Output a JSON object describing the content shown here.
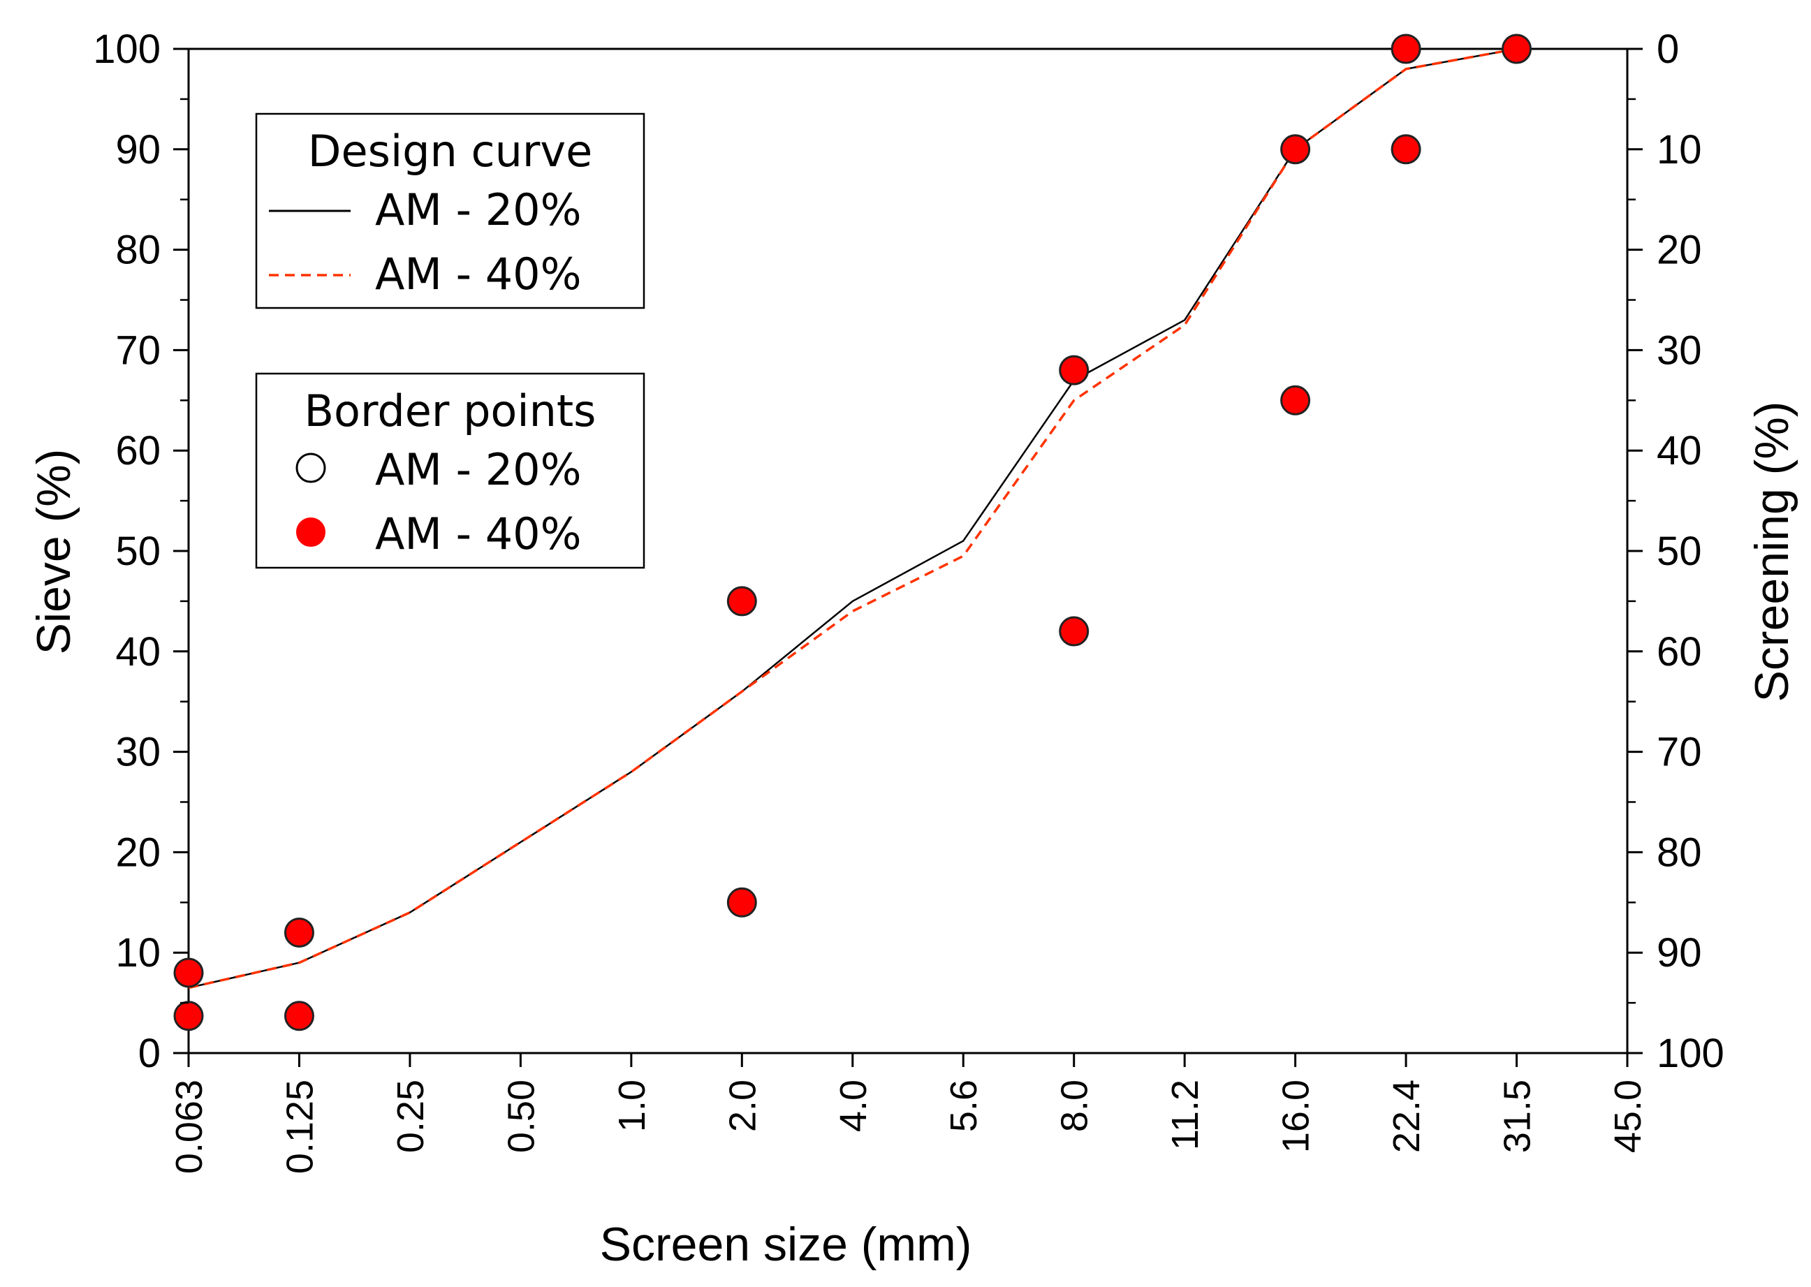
{
  "chart_data": {
    "type": "line",
    "x_scale": "log",
    "xlabel": "Screen size  (mm)",
    "ylabel": "Sieve (%)",
    "y2label": "Screening (%)",
    "ylim": [
      0,
      100
    ],
    "y2lim": [
      100,
      0
    ],
    "x_ticks": [
      {
        "value": 0.063,
        "label": "0.063"
      },
      {
        "value": 0.125,
        "label": "0.125"
      },
      {
        "value": 0.25,
        "label": "0.25"
      },
      {
        "value": 0.5,
        "label": "0.50"
      },
      {
        "value": 1.0,
        "label": "1.0"
      },
      {
        "value": 2.0,
        "label": "2.0"
      },
      {
        "value": 4.0,
        "label": "4.0"
      },
      {
        "value": 5.6,
        "label": "5.6"
      },
      {
        "value": 8.0,
        "label": "8.0"
      },
      {
        "value": 11.2,
        "label": "11.2"
      },
      {
        "value": 16.0,
        "label": "16.0"
      },
      {
        "value": 22.4,
        "label": "22.4"
      },
      {
        "value": 31.5,
        "label": "31.5"
      },
      {
        "value": 45.0,
        "label": "45.0"
      }
    ],
    "y_ticks": [
      "0",
      "10",
      "20",
      "30",
      "40",
      "50",
      "60",
      "70",
      "80",
      "90",
      "100"
    ],
    "y2_ticks": [
      "100",
      "90",
      "80",
      "70",
      "60",
      "50",
      "40",
      "30",
      "20",
      "10",
      "0"
    ],
    "legends": [
      {
        "title": "Design curve",
        "position": "upper-left",
        "entries": [
          {
            "label": "AM - 20%",
            "marker": "solid-line",
            "color": "#000000"
          },
          {
            "label": "AM - 40%",
            "marker": "dashed-line",
            "color": "#ff3300"
          }
        ]
      },
      {
        "title": "Border points",
        "position": "upper-left",
        "entries": [
          {
            "label": "AM - 20%",
            "marker": "open-circle",
            "color": "#000000"
          },
          {
            "label": "AM - 40%",
            "marker": "filled-circle",
            "color": "#ff0000"
          }
        ]
      }
    ],
    "series": [
      {
        "name": "AM - 20%",
        "kind": "curve",
        "style": "solid",
        "color": "#000000",
        "x": [
          0.063,
          0.125,
          0.25,
          0.5,
          1.0,
          2.0,
          4.0,
          5.6,
          8.0,
          11.2,
          16.0,
          22.4,
          31.5
        ],
        "y": [
          6.5,
          9,
          14,
          21,
          28,
          36,
          45,
          51,
          67,
          73,
          90,
          98,
          100
        ]
      },
      {
        "name": "AM - 40%",
        "kind": "curve",
        "style": "dashed",
        "color": "#ff3300",
        "x": [
          0.063,
          0.125,
          0.25,
          0.5,
          1.0,
          2.0,
          4.0,
          5.6,
          8.0,
          11.2,
          16.0,
          22.4,
          31.5
        ],
        "y": [
          6.5,
          9,
          14,
          21,
          28,
          36,
          44,
          49.5,
          65,
          72.5,
          90,
          98,
          100
        ]
      },
      {
        "name": "AM - 40%",
        "kind": "points",
        "color": "#ff0000",
        "x": [
          0.063,
          0.063,
          0.125,
          0.125,
          2.0,
          2.0,
          8.0,
          8.0,
          16.0,
          16.0,
          22.4,
          22.4,
          31.5
        ],
        "y": [
          8,
          3.7,
          12,
          3.7,
          45,
          15,
          68,
          42,
          90,
          65,
          100,
          90,
          100
        ]
      }
    ]
  }
}
